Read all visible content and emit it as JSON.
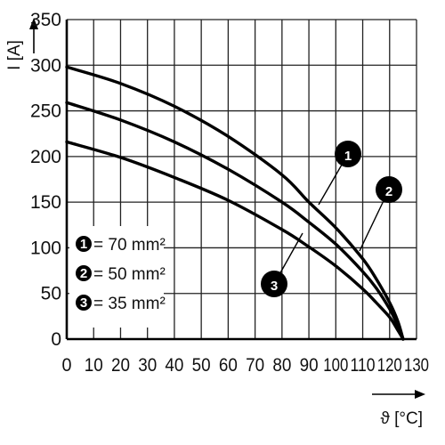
{
  "chart_data": {
    "type": "line",
    "xlabel": "ϑ [°C]",
    "ylabel": "I [A]",
    "xlim": [
      0,
      130
    ],
    "ylim": [
      0,
      350
    ],
    "xticks": [
      0,
      10,
      20,
      30,
      40,
      50,
      60,
      70,
      80,
      90,
      100,
      110,
      120,
      130
    ],
    "yticks": [
      0,
      50,
      100,
      150,
      200,
      250,
      300,
      350
    ],
    "grid": true,
    "legend_position": "lower-left",
    "series": [
      {
        "id": "1",
        "name": "= 70 mm²",
        "marker": "1",
        "x": [
          0,
          20,
          40,
          60,
          80,
          90,
          100,
          110,
          115,
          120,
          123,
          125
        ],
        "y": [
          298,
          280,
          255,
          222,
          180,
          150,
          122,
          88,
          66,
          40,
          20,
          0
        ]
      },
      {
        "id": "2",
        "name": "= 50 mm²",
        "marker": "2",
        "x": [
          0,
          20,
          40,
          60,
          80,
          90,
          100,
          110,
          115,
          120,
          123,
          125
        ],
        "y": [
          259,
          240,
          216,
          186,
          150,
          128,
          104,
          74,
          56,
          33,
          15,
          0
        ]
      },
      {
        "id": "3",
        "name": "= 35 mm²",
        "marker": "3",
        "x": [
          0,
          20,
          40,
          60,
          80,
          90,
          100,
          110,
          115,
          120,
          123,
          125
        ],
        "y": [
          216,
          199,
          177,
          152,
          120,
          101,
          80,
          55,
          40,
          24,
          10,
          0
        ]
      }
    ]
  }
}
